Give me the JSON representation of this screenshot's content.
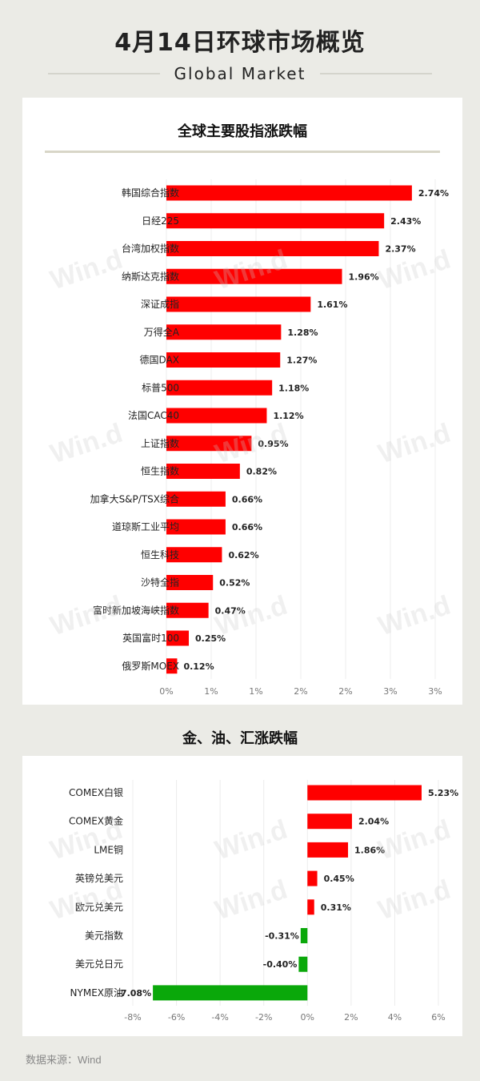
{
  "header": {
    "title": "4月14日环球市场概览",
    "subtitle": "Global Market"
  },
  "watermark": "Win.d",
  "footer": {
    "source": "数据来源：Wind"
  },
  "chart_data": [
    {
      "type": "bar",
      "orientation": "horizontal",
      "title": "全球主要股指涨跌幅",
      "categories": [
        "韩国综合指数",
        "日经225",
        "台湾加权指数",
        "纳斯达克指数",
        "深证成指",
        "万得全A",
        "德国DAX",
        "标普500",
        "法国CAC40",
        "上证指数",
        "恒生指数",
        "加拿大S&P/TSX综合",
        "道琼斯工业平均",
        "恒生科技",
        "沙特全指",
        "富时新加坡海峡指数",
        "英国富时100",
        "俄罗斯MOEX"
      ],
      "values": [
        2.74,
        2.43,
        2.37,
        1.96,
        1.61,
        1.28,
        1.27,
        1.18,
        1.12,
        0.95,
        0.82,
        0.66,
        0.66,
        0.62,
        0.52,
        0.47,
        0.25,
        0.12
      ],
      "value_labels": [
        "2.74%",
        "2.43%",
        "2.37%",
        "1.96%",
        "1.61%",
        "1.28%",
        "1.27%",
        "1.18%",
        "1.12%",
        "0.95%",
        "0.82%",
        "0.66%",
        "0.66%",
        "0.62%",
        "0.52%",
        "0.47%",
        "0.25%",
        "0.12%"
      ],
      "xlim": [
        0,
        3
      ],
      "xticks": [
        0,
        0.5,
        1,
        1.5,
        2,
        2.5,
        3
      ],
      "xtick_labels": [
        "0%",
        "1%",
        "1%",
        "2%",
        "2%",
        "3%",
        "3%"
      ],
      "grid": true,
      "colors": {
        "positive": "#ff0000",
        "negative": "#0aa80a"
      }
    },
    {
      "type": "bar",
      "orientation": "horizontal",
      "title": "金、油、汇涨跌幅",
      "categories": [
        "COMEX白银",
        "COMEX黄金",
        "LME铜",
        "英镑兑美元",
        "欧元兑美元",
        "美元指数",
        "美元兑日元",
        "NYMEX原油"
      ],
      "values": [
        5.23,
        2.04,
        1.86,
        0.45,
        0.31,
        -0.31,
        -0.4,
        -7.08
      ],
      "value_labels": [
        "5.23%",
        "2.04%",
        "1.86%",
        "0.45%",
        "0.31%",
        "-0.31%",
        "-0.40%",
        "-7.08%"
      ],
      "xlim": [
        -8,
        6
      ],
      "xticks": [
        -8,
        -6,
        -4,
        -2,
        0,
        2,
        4,
        6
      ],
      "xtick_labels": [
        "-8%",
        "-6%",
        "-4%",
        "-2%",
        "0%",
        "2%",
        "4%",
        "6%"
      ],
      "grid": true,
      "colors": {
        "positive": "#ff0000",
        "negative": "#0aa80a"
      }
    }
  ]
}
